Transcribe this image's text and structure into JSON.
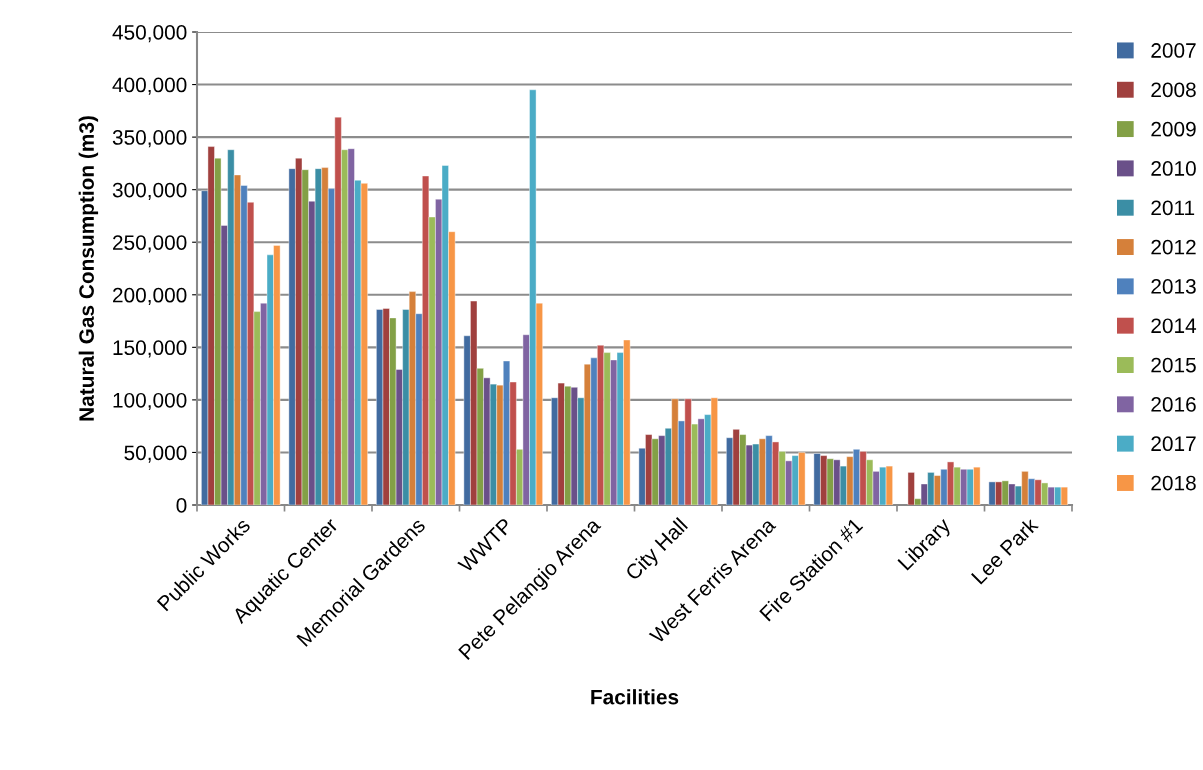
{
  "chart_data": {
    "type": "bar",
    "xlabel": "Facilities",
    "ylabel": "Natural Gas Consumption (m3)",
    "categories": [
      "Public Works",
      "Aquatic Center",
      "Memorial Gardens",
      "WWTP",
      "Pete Pelangio Arena",
      "City Hall",
      "West Ferris Arena",
      "Fire Station #1",
      "Library",
      "Lee Park"
    ],
    "series": [
      {
        "name": "2007",
        "color": "#416ba0",
        "values": [
          299000,
          320000,
          186000,
          161000,
          102000,
          54000,
          64000,
          49000,
          null,
          22000
        ]
      },
      {
        "name": "2008",
        "color": "#a0403e",
        "values": [
          341000,
          330000,
          187000,
          194000,
          116000,
          67000,
          72000,
          47000,
          31000,
          22000
        ]
      },
      {
        "name": "2009",
        "color": "#83a046",
        "values": [
          330000,
          319000,
          178000,
          130000,
          113000,
          63000,
          67000,
          44000,
          6000,
          23000
        ]
      },
      {
        "name": "2010",
        "color": "#6a5089",
        "values": [
          266000,
          289000,
          129000,
          121000,
          112000,
          66000,
          57000,
          43000,
          20000,
          20000
        ]
      },
      {
        "name": "2011",
        "color": "#3b8ea5",
        "values": [
          338000,
          320000,
          186000,
          115000,
          102000,
          73000,
          58000,
          37000,
          31000,
          18000
        ]
      },
      {
        "name": "2012",
        "color": "#d5803a",
        "values": [
          314000,
          321000,
          203000,
          114000,
          134000,
          101000,
          63000,
          46000,
          28000,
          32000
        ]
      },
      {
        "name": "2013",
        "color": "#4f81bd",
        "values": [
          304000,
          301000,
          182000,
          137000,
          140000,
          80000,
          66000,
          53000,
          34000,
          25000
        ]
      },
      {
        "name": "2014",
        "color": "#c0504d",
        "values": [
          288000,
          369000,
          313000,
          117000,
          152000,
          101000,
          60000,
          51000,
          41000,
          24000
        ]
      },
      {
        "name": "2015",
        "color": "#9bbb59",
        "values": [
          184000,
          338000,
          274000,
          53000,
          145000,
          77000,
          51000,
          43000,
          36000,
          21000
        ]
      },
      {
        "name": "2016",
        "color": "#8064a2",
        "values": [
          192000,
          339000,
          291000,
          162000,
          138000,
          82000,
          42000,
          32000,
          34000,
          17000
        ]
      },
      {
        "name": "2017",
        "color": "#4bacc6",
        "values": [
          238000,
          309000,
          323000,
          395000,
          145000,
          86000,
          47000,
          36000,
          34000,
          17000
        ]
      },
      {
        "name": "2018",
        "color": "#f79646",
        "values": [
          247000,
          306000,
          260000,
          192000,
          157000,
          102000,
          50000,
          37000,
          36000,
          17000
        ]
      }
    ],
    "ylim": [
      0,
      450000
    ],
    "yticks": [
      {
        "value": 0,
        "label": "0"
      },
      {
        "value": 50000,
        "label": "50,000"
      },
      {
        "value": 100000,
        "label": "100,000"
      },
      {
        "value": 150000,
        "label": "150,000"
      },
      {
        "value": 200000,
        "label": "200,000"
      },
      {
        "value": 250000,
        "label": "250,000"
      },
      {
        "value": 300000,
        "label": "300,000"
      },
      {
        "value": 350000,
        "label": "350,000"
      },
      {
        "value": 400000,
        "label": "400,000"
      },
      {
        "value": 450000,
        "label": "450,000"
      }
    ],
    "grid": "y",
    "legend": "right"
  }
}
